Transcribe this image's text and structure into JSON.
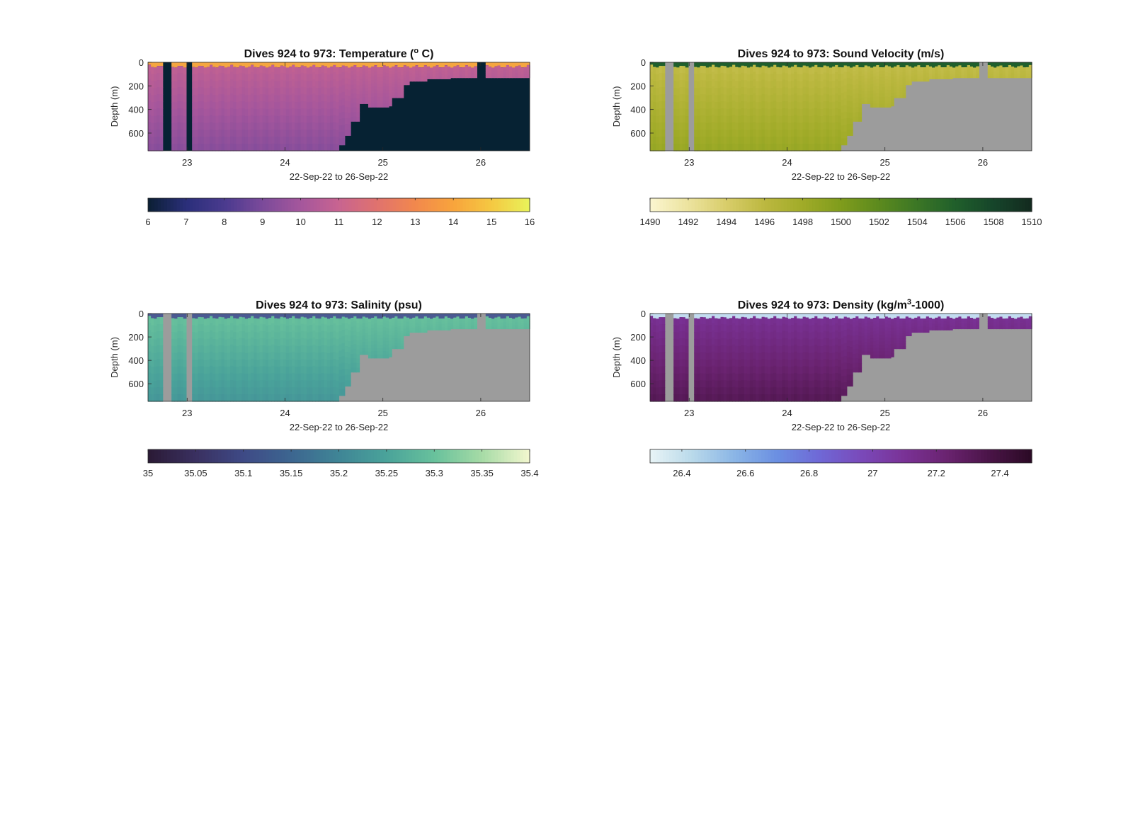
{
  "chart_data": [
    {
      "type": "heatmap",
      "title_main": "Dives 924 to 973: Temperature (",
      "title_sup": "o",
      "title_after": " C)",
      "xlabel": "22-Sep-22 to 26-Sep-22",
      "ylabel": "Depth (m)",
      "x_ticks": [
        23,
        24,
        25,
        26
      ],
      "xlim": [
        22.6,
        26.5
      ],
      "y_ticks": [
        0,
        200,
        400,
        600
      ],
      "ylim": [
        0,
        750
      ],
      "colorbar": {
        "ticks": [
          6,
          7,
          8,
          9,
          10,
          11,
          12,
          13,
          14,
          15,
          16
        ],
        "range": [
          6,
          16
        ],
        "colors": [
          "#0b1f33",
          "#2a2f7a",
          "#4a3a8e",
          "#7b4a9a",
          "#a5569c",
          "#c86490",
          "#e0726e",
          "#f2884d",
          "#f8a43c",
          "#f5c842",
          "#e8f35a"
        ]
      },
      "no_data_color": "#062233",
      "surface_color": "#f5a640",
      "deep_value": 9.3,
      "shallow_value": 10.8
    },
    {
      "type": "heatmap",
      "title_main": "Dives 924 to 973: Sound Velocity (m/s)",
      "title_sup": "",
      "title_after": "",
      "xlabel": "22-Sep-22 to 26-Sep-22",
      "ylabel": "Depth (m)",
      "x_ticks": [
        23,
        24,
        25,
        26
      ],
      "xlim": [
        22.6,
        26.5
      ],
      "y_ticks": [
        0,
        200,
        400,
        600
      ],
      "ylim": [
        0,
        750
      ],
      "colorbar": {
        "ticks": [
          1490,
          1492,
          1494,
          1496,
          1498,
          1500,
          1502,
          1504,
          1506,
          1508,
          1510
        ],
        "range": [
          1490,
          1510
        ],
        "colors": [
          "#fbf6d0",
          "#ece39e",
          "#d8cd6a",
          "#bcb840",
          "#a0ab28",
          "#7f9c1c",
          "#5c8a1e",
          "#3b7625",
          "#205f2b",
          "#16452a",
          "#132a1f"
        ]
      },
      "no_data_color": "#9c9c9c",
      "surface_color": "#1f5f2c",
      "deep_value": 1498.5,
      "shallow_value": 1495.5
    },
    {
      "type": "heatmap",
      "title_main": "Dives 924 to 973: Salinity (psu)",
      "title_sup": "",
      "title_after": "",
      "xlabel": "22-Sep-22 to 26-Sep-22",
      "ylabel": "Depth (m)",
      "x_ticks": [
        23,
        24,
        25,
        26
      ],
      "xlim": [
        22.6,
        26.5
      ],
      "y_ticks": [
        0,
        200,
        400,
        600
      ],
      "ylim": [
        0,
        750
      ],
      "colorbar": {
        "ticks": [
          35,
          35.05,
          35.1,
          35.15,
          35.2,
          35.25,
          35.3,
          35.35,
          35.4
        ],
        "range": [
          35,
          35.4
        ],
        "colors": [
          "#2a1a35",
          "#3a3060",
          "#3e4a86",
          "#3d6690",
          "#3f8596",
          "#4aa39a",
          "#68c19c",
          "#a6dba6",
          "#f3f7cf"
        ]
      },
      "no_data_color": "#9c9c9c",
      "surface_color": "#4b5a92",
      "deep_value": 35.23,
      "shallow_value": 35.3
    },
    {
      "type": "heatmap",
      "title_main": "Dives 924 to 973: Density (kg/m",
      "title_sup": "3",
      "title_after": "-1000)",
      "xlabel": "22-Sep-22 to 26-Sep-22",
      "ylabel": "Depth (m)",
      "x_ticks": [
        23,
        24,
        25,
        26
      ],
      "xlim": [
        22.6,
        26.5
      ],
      "y_ticks": [
        0,
        200,
        400,
        600
      ],
      "ylim": [
        0,
        750
      ],
      "colorbar": {
        "ticks": [
          26.4,
          26.6,
          26.8,
          27,
          27.2,
          27.4
        ],
        "range": [
          26.3,
          27.5
        ],
        "colors": [
          "#e8f4f6",
          "#b9d9ea",
          "#8ab5e6",
          "#6b8fe2",
          "#6f68d6",
          "#7a49b9",
          "#7a3296",
          "#6a2370",
          "#4a1447",
          "#2b0a25"
        ]
      },
      "no_data_color": "#9c9c9c",
      "surface_color": "#c3dcf0",
      "deep_value": 27.32,
      "shallow_value": 27.1
    }
  ]
}
